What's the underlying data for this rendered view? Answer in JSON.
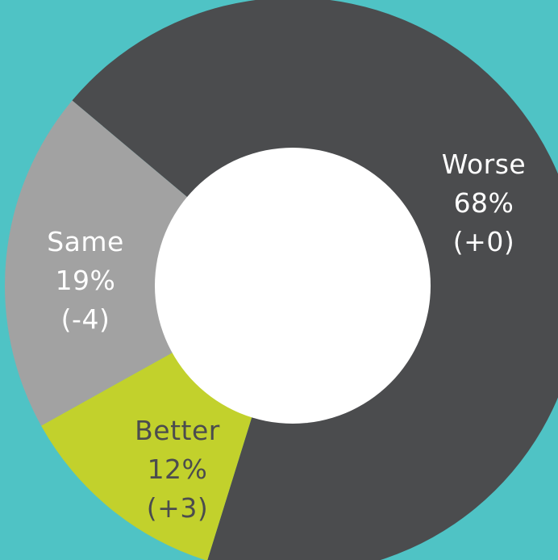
{
  "colors": {
    "background": "#4fc3c5",
    "hole": "#ffffff"
  },
  "chart_data": {
    "type": "pie",
    "donut": true,
    "slices": [
      {
        "name": "Worse",
        "percent": 68,
        "percent_label": "68%",
        "change_label": "(+0)",
        "color": "#4b4c4e",
        "text_color": "#ffffff"
      },
      {
        "name": "Better",
        "percent": 12,
        "percent_label": "12%",
        "change_label": "(+3)",
        "color": "#c2d12c",
        "text_color": "#4b4c4e"
      },
      {
        "name": "Same",
        "percent": 19,
        "percent_label": "19%",
        "change_label": "(-4)",
        "color": "#a2a2a2",
        "text_color": "#ffffff"
      }
    ]
  }
}
